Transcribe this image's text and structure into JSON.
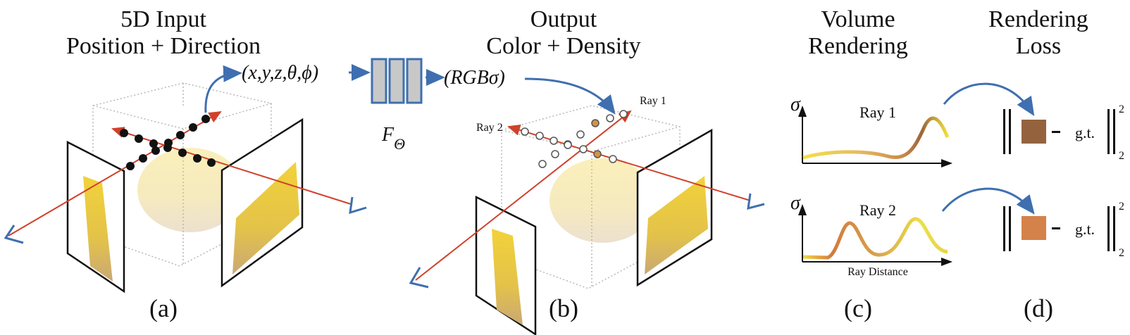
{
  "panels": {
    "a": {
      "title_line1": "5D Input",
      "title_line2": "Position + Direction",
      "label": "(a)"
    },
    "b": {
      "title_line1": "Output",
      "title_line2": "Color + Density",
      "label": "(b)",
      "ray1": "Ray 1",
      "ray2": "Ray 2"
    },
    "c": {
      "title_line1": "Volume",
      "title_line2": "Rendering",
      "label": "(c)",
      "ray1": "Ray 1",
      "ray2": "Ray 2",
      "y_axis": "σ",
      "x_axis": "Ray Distance"
    },
    "d": {
      "title_line1": "Rendering",
      "title_line2": "Loss",
      "label": "(d)",
      "gt": "g.t.",
      "exponent": "2",
      "subscript": "2"
    }
  },
  "network": {
    "input": "(x,y,z,θ,ϕ)",
    "function": "F",
    "function_sub": "Θ",
    "output": "(RGBσ)"
  },
  "colors": {
    "ray": "#d0412a",
    "arrow": "#3f6fb0",
    "ray1_color": "#94633e",
    "ray2_color": "#d4824a",
    "network_fill": "#c8c8c8"
  }
}
